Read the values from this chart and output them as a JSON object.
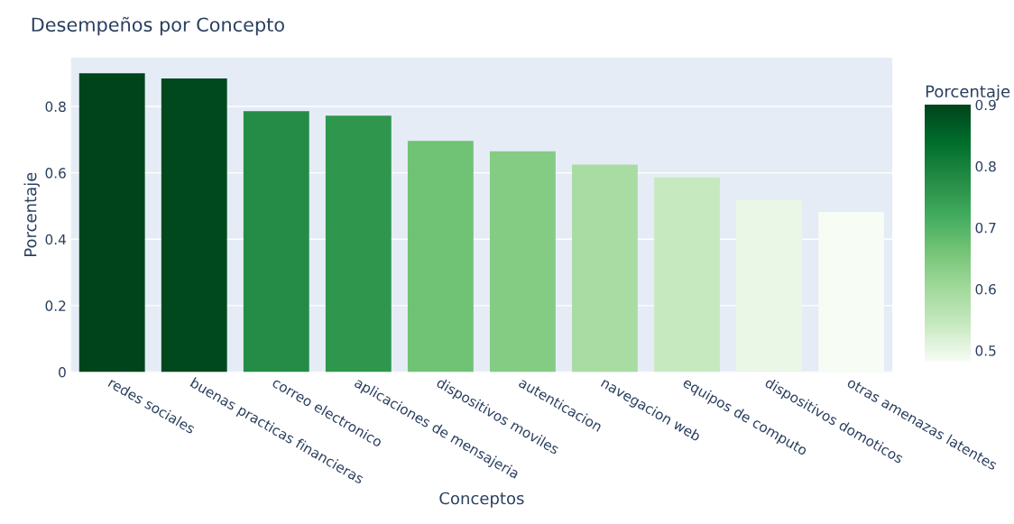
{
  "chart_data": {
    "type": "bar",
    "title": "Desempeños por Concepto",
    "xlabel": "Conceptos",
    "ylabel": "Porcentaje",
    "clabel": "Porcentaje",
    "categories": [
      "redes sociales",
      "buenas practicas financieras",
      "correo electronico",
      "aplicaciones de mensajeria",
      "dispositivos moviles",
      "autenticacion",
      "navegacion web",
      "equipos de computo",
      "dispositivos domoticos",
      "otras amenazas latentes"
    ],
    "values": [
      0.9,
      0.884,
      0.786,
      0.772,
      0.696,
      0.665,
      0.625,
      0.586,
      0.518,
      0.482
    ],
    "colors": [
      "#00441b",
      "#00481d",
      "#248c46",
      "#2e964d",
      "#70c274",
      "#84cc83",
      "#a9dca3",
      "#c7e9c0",
      "#eaf6e6",
      "#f7fcf5"
    ],
    "ylim": [
      0,
      0.947
    ],
    "yticks": [
      0,
      0.2,
      0.4,
      0.6,
      0.8
    ],
    "clim": [
      0.482,
      0.9
    ],
    "cticks": [
      0.5,
      0.6,
      0.7,
      0.8,
      0.9
    ],
    "grid": "y",
    "legend": false
  }
}
